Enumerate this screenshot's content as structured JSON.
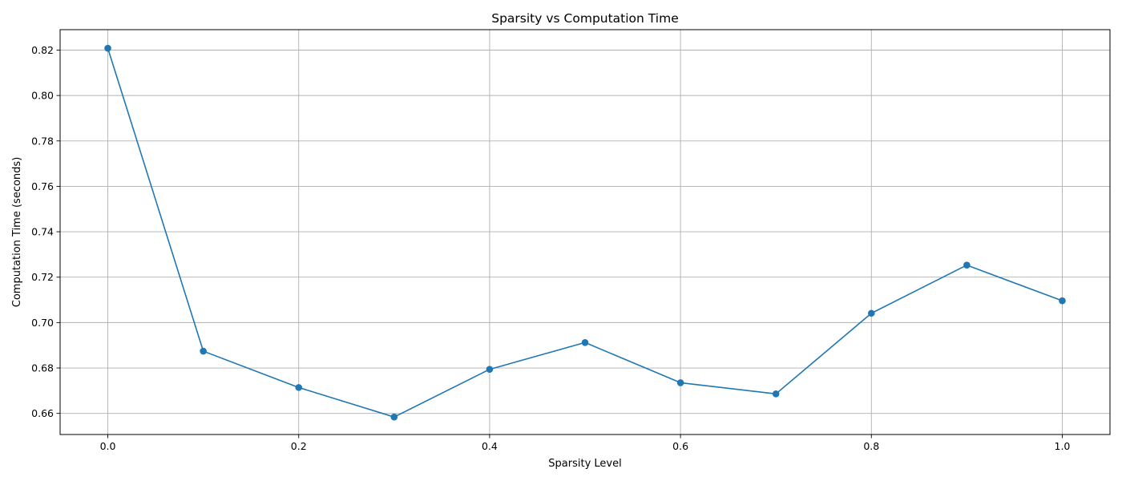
{
  "chart_data": {
    "type": "line",
    "title": "Sparsity vs Computation Time",
    "xlabel": "Sparsity Level",
    "ylabel": "Computation Time (seconds)",
    "xlim": [
      -0.05,
      1.05
    ],
    "ylim": [
      0.6507,
      0.829
    ],
    "xticks": [
      0.0,
      0.2,
      0.4,
      0.6,
      0.8,
      1.0
    ],
    "xtick_labels": [
      "0.0",
      "0.2",
      "0.4",
      "0.6",
      "0.8",
      "1.0"
    ],
    "yticks": [
      0.66,
      0.68,
      0.7,
      0.72,
      0.74,
      0.76,
      0.78,
      0.8,
      0.82
    ],
    "ytick_labels": [
      "0.66",
      "0.68",
      "0.70",
      "0.72",
      "0.74",
      "0.76",
      "0.78",
      "0.80",
      "0.82"
    ],
    "grid": true,
    "marker": "circle",
    "colors": {
      "line": "#1f77b4"
    },
    "series": [
      {
        "x": [
          0.0,
          0.1,
          0.2,
          0.3,
          0.4,
          0.5,
          0.6,
          0.7,
          0.8,
          0.9,
          1.0
        ],
        "values": [
          0.8208,
          0.6874,
          0.6714,
          0.6584,
          0.6794,
          0.6912,
          0.6735,
          0.6686,
          0.7041,
          0.7253,
          0.7096
        ]
      }
    ]
  }
}
